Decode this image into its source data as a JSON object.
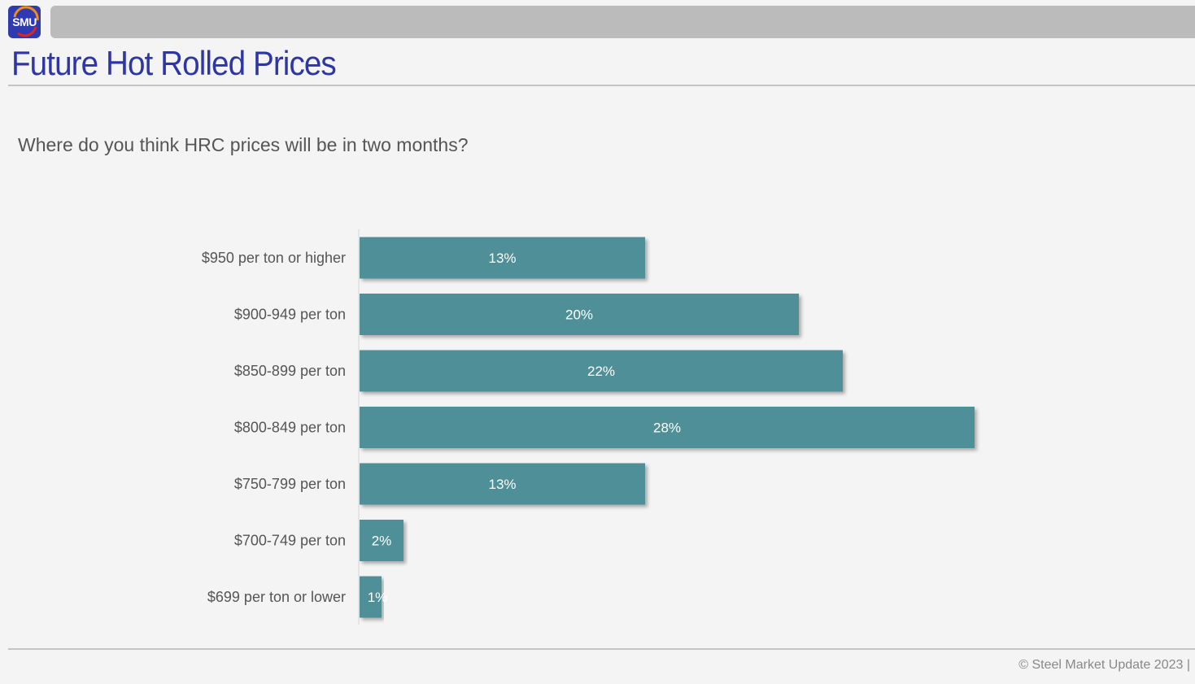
{
  "header": {
    "logo_text": "SMU",
    "title": "Future Hot Rolled Prices"
  },
  "footer": {
    "copyright": "© Steel Market Update 2023 |"
  },
  "colors": {
    "bar": "#4f8f97",
    "title": "#2e36a6"
  },
  "chart_data": {
    "type": "bar",
    "orientation": "horizontal",
    "title": "Where do you think HRC prices will be in two months?",
    "categories": [
      "$950 per ton or higher",
      "$900-949 per ton",
      "$850-899 per ton",
      "$800-849 per ton",
      "$750-799 per ton",
      "$700-749 per ton",
      "$699 per ton or lower"
    ],
    "values": [
      13,
      20,
      22,
      28,
      13,
      2,
      1
    ],
    "data_labels": [
      "13%",
      "20%",
      "22%",
      "28%",
      "13%",
      "2%",
      "1%"
    ],
    "unit": "%",
    "grid": false,
    "legend": "none"
  }
}
